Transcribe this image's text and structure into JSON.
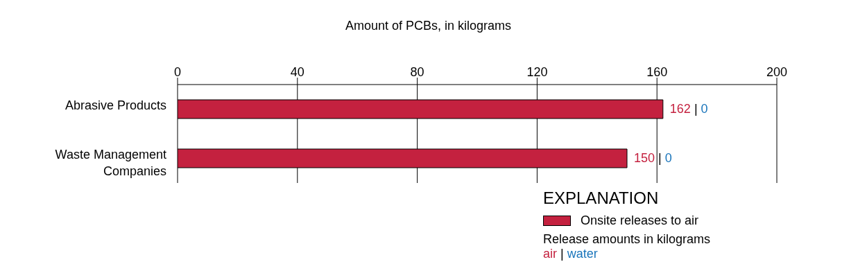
{
  "chart_data": {
    "type": "bar",
    "orientation": "horizontal",
    "stacked": true,
    "xlabel": "Amount of PCBs, in kilograms",
    "legend_title": "EXPLANATION",
    "categories": [
      "Abrasive Products",
      "Waste Management Companies"
    ],
    "series": [
      {
        "name": "Onsite releases to air",
        "color": "#c4213f",
        "values": [
          162,
          150
        ],
        "value_labels": [
          "162 |",
          "150 |"
        ]
      },
      {
        "color": "#1a75bb",
        "values": [
          0,
          0
        ],
        "value_labels": [
          "0",
          "0"
        ]
      }
    ],
    "xlim": [
      0,
      200
    ],
    "xticks": [
      0,
      40,
      80,
      120,
      160,
      200
    ],
    "grid": "x",
    "legend": "bottom right",
    "annotations": [
      "Release amounts in kilograms",
      "air | water"
    ]
  }
}
